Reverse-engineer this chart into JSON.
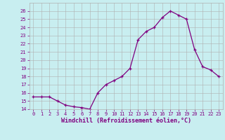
{
  "x": [
    0,
    1,
    2,
    3,
    4,
    5,
    6,
    7,
    8,
    9,
    10,
    11,
    12,
    13,
    14,
    15,
    16,
    17,
    18,
    19,
    20,
    21,
    22,
    23
  ],
  "y": [
    15.5,
    15.5,
    15.5,
    15.0,
    14.5,
    14.3,
    14.2,
    14.0,
    16.0,
    17.0,
    17.5,
    18.0,
    19.0,
    22.5,
    23.5,
    24.0,
    25.2,
    26.0,
    25.5,
    25.0,
    21.3,
    19.2,
    18.8,
    18.0
  ],
  "line_color": "#800080",
  "marker": "+",
  "bg_color": "#c8eef0",
  "grid_color": "#b0b0b0",
  "xlabel": "Windchill (Refroidissement éolien,°C)",
  "xlabel_color": "#800080",
  "tick_color": "#800080",
  "ylim": [
    14,
    27
  ],
  "xlim_min": -0.5,
  "xlim_max": 23.5,
  "yticks": [
    14,
    15,
    16,
    17,
    18,
    19,
    20,
    21,
    22,
    23,
    24,
    25,
    26
  ],
  "xticks": [
    0,
    1,
    2,
    3,
    4,
    5,
    6,
    7,
    8,
    9,
    10,
    11,
    12,
    13,
    14,
    15,
    16,
    17,
    18,
    19,
    20,
    21,
    22,
    23
  ]
}
